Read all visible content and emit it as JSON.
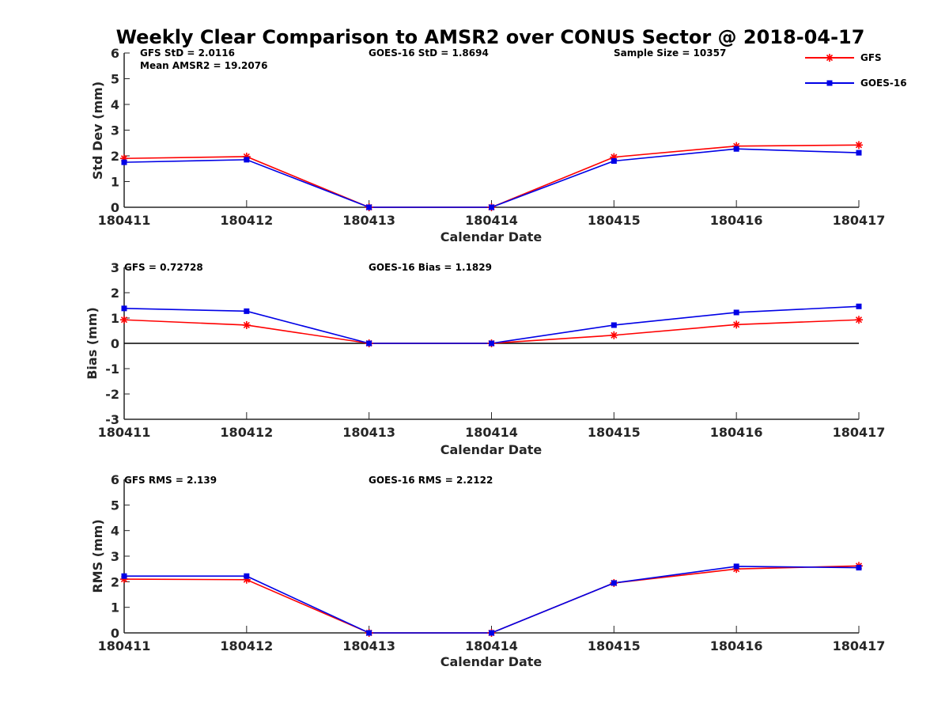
{
  "title": "Weekly Clear Comparison to AMSR2 over CONUS Sector @ 2018-04-17",
  "legend": {
    "placement": "top-right",
    "entries": [
      {
        "name": "GFS",
        "color": "#ff0000",
        "marker": "asterisk"
      },
      {
        "name": "GOES-16",
        "color": "#0000e6",
        "marker": "square"
      }
    ]
  },
  "chart_data": [
    {
      "type": "line",
      "xlabel": "Calendar Date",
      "ylabel": "Std Dev (mm)",
      "categories": [
        "180411",
        "180412",
        "180413",
        "180414",
        "180415",
        "180416",
        "180417"
      ],
      "ylim": [
        0,
        6
      ],
      "yticks": [
        0,
        1,
        2,
        3,
        4,
        5,
        6
      ],
      "annotations": {
        "gfs_std": "GFS StD = 2.0116",
        "mean_amsr2": "Mean AMSR2 = 19.2076",
        "goes_std": "GOES-16 StD = 1.8694",
        "sample_size": "Sample Size = 10357"
      },
      "series": [
        {
          "name": "GFS",
          "color": "#ff0000",
          "values": [
            1.9,
            1.97,
            0.0,
            0.0,
            1.95,
            2.38,
            2.42
          ]
        },
        {
          "name": "GOES-16",
          "color": "#0000e6",
          "values": [
            1.75,
            1.85,
            0.0,
            0.0,
            1.8,
            2.27,
            2.12
          ]
        }
      ]
    },
    {
      "type": "line",
      "xlabel": "Calendar Date",
      "ylabel": "Bias (mm)",
      "categories": [
        "180411",
        "180412",
        "180413",
        "180414",
        "180415",
        "180416",
        "180417"
      ],
      "ylim": [
        -3,
        3
      ],
      "yticks": [
        -3,
        -2,
        -1,
        0,
        1,
        2,
        3
      ],
      "zero_line": true,
      "annotations": {
        "gfs_bias": "GFS = 0.72728",
        "goes_bias": "GOES-16 Bias  = 1.1829"
      },
      "series": [
        {
          "name": "GFS",
          "color": "#ff0000",
          "values": [
            0.93,
            0.72,
            0.0,
            0.0,
            0.32,
            0.74,
            0.93
          ]
        },
        {
          "name": "GOES-16",
          "color": "#0000e6",
          "values": [
            1.38,
            1.27,
            0.0,
            0.0,
            0.72,
            1.22,
            1.46
          ]
        }
      ]
    },
    {
      "type": "line",
      "xlabel": "Calendar Date",
      "ylabel": "RMS (mm)",
      "categories": [
        "180411",
        "180412",
        "180413",
        "180414",
        "180415",
        "180416",
        "180417"
      ],
      "ylim": [
        0,
        6
      ],
      "yticks": [
        0,
        1,
        2,
        3,
        4,
        5,
        6
      ],
      "annotations": {
        "gfs_rms": "GFS RMS = 2.139",
        "goes_rms": "GOES-16 RMS = 2.2122"
      },
      "series": [
        {
          "name": "GFS",
          "color": "#ff0000",
          "values": [
            2.1,
            2.08,
            0.0,
            0.0,
            1.95,
            2.5,
            2.62
          ]
        },
        {
          "name": "GOES-16",
          "color": "#0000e6",
          "values": [
            2.22,
            2.22,
            0.0,
            0.0,
            1.95,
            2.6,
            2.55
          ]
        }
      ]
    }
  ]
}
